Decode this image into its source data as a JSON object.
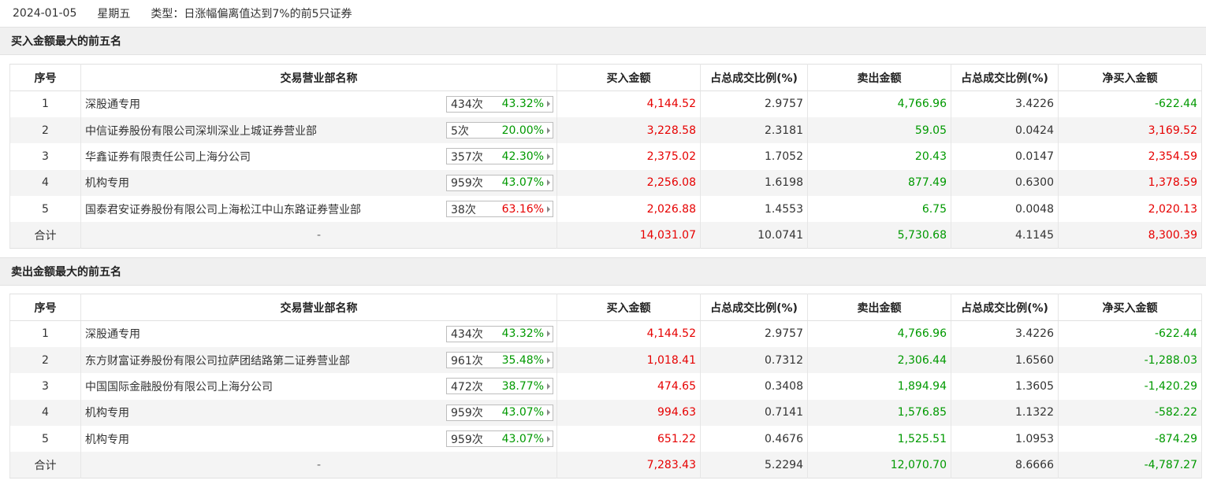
{
  "header": {
    "date": "2024-01-05",
    "weekday": "星期五",
    "type_label": "类型：",
    "type_value": "日涨幅偏离值达到7%的前5只证券"
  },
  "columns": [
    "序号",
    "交易营业部名称",
    "买入金额",
    "占总成交比例(%)",
    "卖出金额",
    "占总成交比例(%)",
    "净买入金额"
  ],
  "buy_top5": {
    "title": "买入金额最大的前五名",
    "rows": [
      {
        "idx": "1",
        "name": "深股通专用",
        "count": "434次",
        "rate": "43.32%",
        "rate_color": "green",
        "buy": "4,144.52",
        "buy_pct": "2.9757",
        "sell": "4,766.96",
        "sell_pct": "3.4226",
        "net": "-622.44",
        "net_color": "green"
      },
      {
        "idx": "2",
        "name": "中信证券股份有限公司深圳深业上城证券营业部",
        "count": "5次",
        "rate": "20.00%",
        "rate_color": "green",
        "buy": "3,228.58",
        "buy_pct": "2.3181",
        "sell": "59.05",
        "sell_pct": "0.0424",
        "net": "3,169.52",
        "net_color": "red"
      },
      {
        "idx": "3",
        "name": "华鑫证券有限责任公司上海分公司",
        "count": "357次",
        "rate": "42.30%",
        "rate_color": "green",
        "buy": "2,375.02",
        "buy_pct": "1.7052",
        "sell": "20.43",
        "sell_pct": "0.0147",
        "net": "2,354.59",
        "net_color": "red"
      },
      {
        "idx": "4",
        "name": "机构专用",
        "count": "959次",
        "rate": "43.07%",
        "rate_color": "green",
        "buy": "2,256.08",
        "buy_pct": "1.6198",
        "sell": "877.49",
        "sell_pct": "0.6300",
        "net": "1,378.59",
        "net_color": "red"
      },
      {
        "idx": "5",
        "name": "国泰君安证券股份有限公司上海松江中山东路证券营业部",
        "count": "38次",
        "rate": "63.16%",
        "rate_color": "red",
        "buy": "2,026.88",
        "buy_pct": "1.4553",
        "sell": "6.75",
        "sell_pct": "0.0048",
        "net": "2,020.13",
        "net_color": "red"
      }
    ],
    "total": {
      "label": "合计",
      "name": "-",
      "buy": "14,031.07",
      "buy_pct": "10.0741",
      "sell": "5,730.68",
      "sell_pct": "4.1145",
      "net": "8,300.39",
      "net_color": "red"
    }
  },
  "sell_top5": {
    "title": "卖出金额最大的前五名",
    "rows": [
      {
        "idx": "1",
        "name": "深股通专用",
        "count": "434次",
        "rate": "43.32%",
        "rate_color": "green",
        "buy": "4,144.52",
        "buy_pct": "2.9757",
        "sell": "4,766.96",
        "sell_pct": "3.4226",
        "net": "-622.44",
        "net_color": "green"
      },
      {
        "idx": "2",
        "name": "东方财富证券股份有限公司拉萨团结路第二证券营业部",
        "count": "961次",
        "rate": "35.48%",
        "rate_color": "green",
        "buy": "1,018.41",
        "buy_pct": "0.7312",
        "sell": "2,306.44",
        "sell_pct": "1.6560",
        "net": "-1,288.03",
        "net_color": "green"
      },
      {
        "idx": "3",
        "name": "中国国际金融股份有限公司上海分公司",
        "count": "472次",
        "rate": "38.77%",
        "rate_color": "green",
        "buy": "474.65",
        "buy_pct": "0.3408",
        "sell": "1,894.94",
        "sell_pct": "1.3605",
        "net": "-1,420.29",
        "net_color": "green"
      },
      {
        "idx": "4",
        "name": "机构专用",
        "count": "959次",
        "rate": "43.07%",
        "rate_color": "green",
        "buy": "994.63",
        "buy_pct": "0.7141",
        "sell": "1,576.85",
        "sell_pct": "1.1322",
        "net": "-582.22",
        "net_color": "green"
      },
      {
        "idx": "5",
        "name": "机构专用",
        "count": "959次",
        "rate": "43.07%",
        "rate_color": "green",
        "buy": "651.22",
        "buy_pct": "0.4676",
        "sell": "1,525.51",
        "sell_pct": "1.0953",
        "net": "-874.29",
        "net_color": "green"
      }
    ],
    "total": {
      "label": "合计",
      "name": "-",
      "buy": "7,283.43",
      "buy_pct": "5.2294",
      "sell": "12,070.70",
      "sell_pct": "8.6666",
      "net": "-4,787.27",
      "net_color": "green"
    }
  }
}
